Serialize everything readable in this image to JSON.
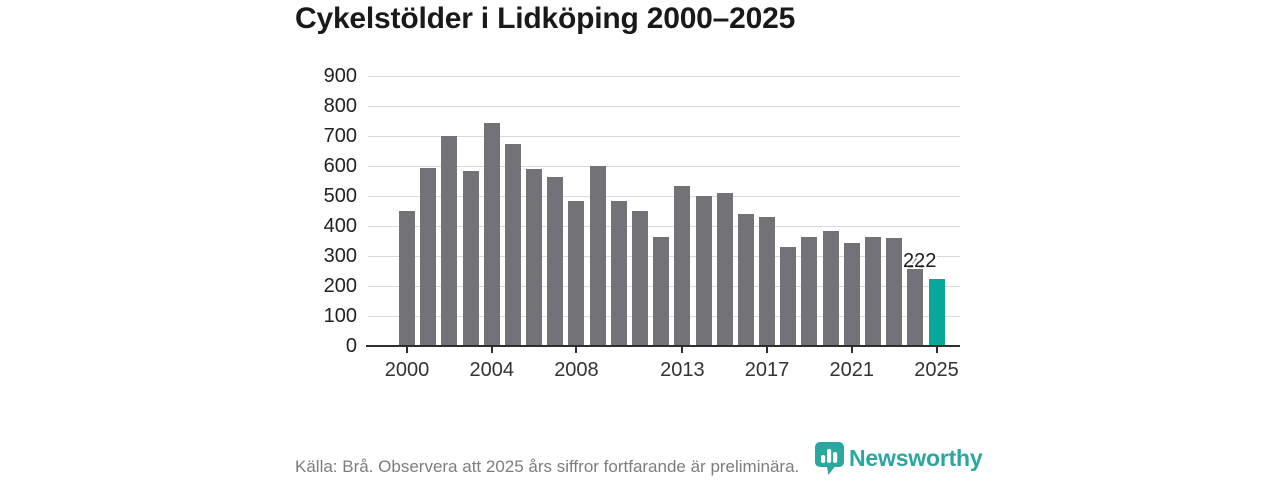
{
  "title": "Cykelstölder i Lidköping 2000–2025",
  "footer": {
    "source_note": "Källa: Brå. Observera att 2025 års siffror fortfarande är preliminära."
  },
  "branding": {
    "name": "Newsworthy",
    "logo_icon": "newsworthy-bar-chart-bubble-icon",
    "brand_color": "#2aa79e"
  },
  "colors": {
    "bar_default": "#737278",
    "bar_highlight": "#0aa79c",
    "gridline": "#d9d9d9",
    "axis": "#2f2f2f",
    "title_text": "#191919",
    "tick_text": "#222222",
    "footer_text": "#7d7d7d"
  },
  "chart_data": {
    "type": "bar",
    "title": "Cykelstölder i Lidköping 2000–2025",
    "xlabel": "",
    "ylabel": "",
    "x": [
      2000,
      2001,
      2002,
      2003,
      2004,
      2005,
      2006,
      2007,
      2008,
      2009,
      2010,
      2011,
      2012,
      2013,
      2014,
      2015,
      2016,
      2017,
      2018,
      2019,
      2020,
      2021,
      2022,
      2023,
      2024,
      2025
    ],
    "values": [
      450,
      595,
      700,
      585,
      745,
      675,
      590,
      565,
      485,
      600,
      485,
      450,
      365,
      535,
      500,
      510,
      440,
      430,
      330,
      365,
      385,
      345,
      365,
      360,
      297,
      222
    ],
    "highlight": {
      "year": 2025,
      "value": 222,
      "label": "222"
    },
    "ylim": [
      0,
      900
    ],
    "yticks": [
      0,
      100,
      200,
      300,
      400,
      500,
      600,
      700,
      800,
      900
    ],
    "xticks": [
      2000,
      2004,
      2008,
      2013,
      2017,
      2021,
      2025
    ],
    "grid": "horizontal",
    "legend": "none"
  }
}
